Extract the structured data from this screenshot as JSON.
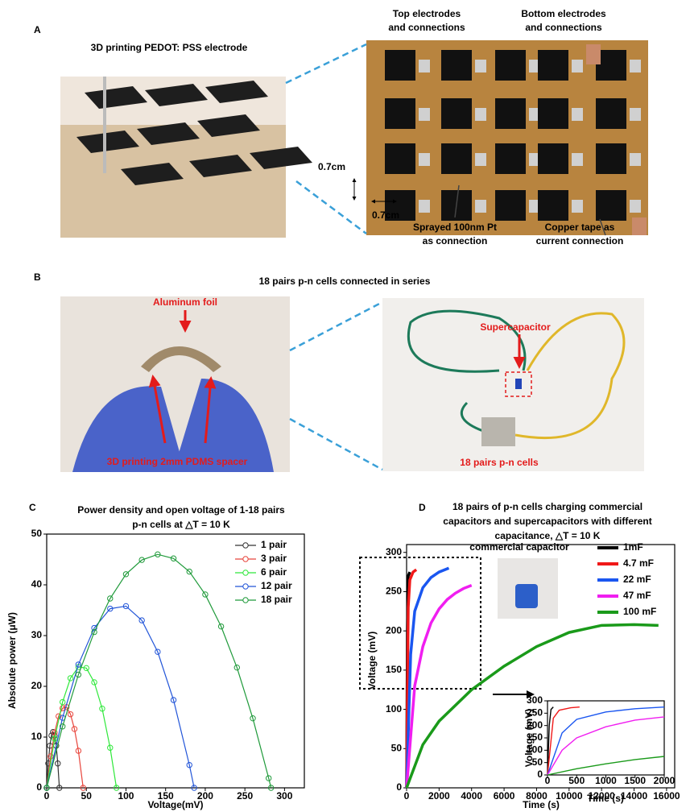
{
  "panels": {
    "A": {
      "label": "A",
      "caption": "3D printing PEDOT: PSS electrode",
      "top_label": [
        "Top electrodes",
        "and connections"
      ],
      "bottom_label": [
        "Bottom electrodes",
        "and connections"
      ],
      "dim_vertical": "0.7cm",
      "dim_horizontal": "0.7cm",
      "pt_label": [
        "Sprayed 100nm Pt",
        "as connection"
      ],
      "copper_label": [
        "Copper tape as",
        "current connection"
      ]
    },
    "B": {
      "label": "B",
      "caption": "18 pairs p-n cells connected in series",
      "foil_label": "Aluminum foil",
      "spacer_label": "3D printing 2mm PDMS spacer",
      "supercap_label": "Supercapacitor",
      "cells_label": "18 pairs p-n cells"
    }
  },
  "chart_data": [
    {
      "type": "line",
      "panel_label": "C",
      "title": [
        "Power density and open voltage of 1-18 pairs",
        "p-n cells at △T = 10 K"
      ],
      "xlabel": "Voltage(mV)",
      "ylabel": "Absolute power (μW)",
      "xlim": [
        0,
        325
      ],
      "ylim": [
        0,
        50
      ],
      "xticks": [
        0,
        50,
        100,
        150,
        200,
        250,
        300
      ],
      "yticks": [
        0,
        10,
        20,
        30,
        40,
        50
      ],
      "markers": "circle",
      "legend": "upper right",
      "series": [
        {
          "name": "1 pair",
          "color": "#333333",
          "x": [
            0,
            2,
            4,
            6,
            8,
            10,
            12,
            14,
            16
          ],
          "values": [
            0,
            4.8,
            8.3,
            10.3,
            11,
            10.3,
            8.3,
            4.8,
            0
          ]
        },
        {
          "name": "3 pair",
          "color": "#e8453c",
          "x": [
            0,
            5,
            10,
            15,
            20,
            25,
            30,
            35,
            40,
            46
          ],
          "values": [
            0,
            6.2,
            10.9,
            14.1,
            15.7,
            15.9,
            14.5,
            11.6,
            7.3,
            0
          ]
        },
        {
          "name": "6 pair",
          "color": "#2ee83a",
          "x": [
            0,
            10,
            20,
            30,
            40,
            50,
            60,
            70,
            80,
            88
          ],
          "values": [
            0,
            9.7,
            16.9,
            21.6,
            23.8,
            23.6,
            20.8,
            15.6,
            7.9,
            0
          ]
        },
        {
          "name": "12 pair",
          "color": "#2255d8",
          "x": [
            0,
            20,
            40,
            60,
            80,
            100,
            120,
            140,
            160,
            180,
            186
          ],
          "values": [
            0,
            13.8,
            24.3,
            31.5,
            35.3,
            35.8,
            33,
            26.8,
            17.3,
            4.5,
            0
          ]
        },
        {
          "name": "18 pair",
          "color": "#1f9a3a",
          "x": [
            0,
            20,
            40,
            60,
            80,
            100,
            120,
            140,
            160,
            180,
            200,
            220,
            240,
            260,
            280,
            283
          ],
          "values": [
            0,
            12.1,
            22.3,
            30.7,
            37.3,
            42.1,
            44.9,
            46,
            45.2,
            42.6,
            38.1,
            31.8,
            23.7,
            13.7,
            1.9,
            0
          ]
        }
      ]
    },
    {
      "type": "line",
      "panel_label": "D",
      "title": [
        "18 pairs of p-n cells charging commercial",
        "capacitors and supercapacitors with different",
        "capacitance, △T = 10 K"
      ],
      "annotation": "commercial  capacitor",
      "xlabel": "Time (s)",
      "ylabel": "Voltage (mV)",
      "xlim": [
        0,
        16500
      ],
      "ylim": [
        0,
        310
      ],
      "xticks": [
        0,
        2000,
        4000,
        6000,
        8000,
        10000,
        12000,
        14000,
        16000
      ],
      "yticks": [
        0,
        50,
        100,
        150,
        200,
        250,
        300
      ],
      "legend": "upper right",
      "series": [
        {
          "name": "1mF",
          "color": "#000000",
          "x": [
            0,
            50,
            100,
            200
          ],
          "values": [
            0,
            200,
            270,
            275
          ]
        },
        {
          "name": "4.7 mF",
          "color": "#f01818",
          "x": [
            0,
            100,
            200,
            400,
            600
          ],
          "values": [
            0,
            230,
            265,
            275,
            278
          ]
        },
        {
          "name": "22 mF",
          "color": "#1a56f0",
          "x": [
            0,
            250,
            500,
            1000,
            1500,
            2000,
            2600
          ],
          "values": [
            0,
            170,
            225,
            255,
            268,
            275,
            280
          ]
        },
        {
          "name": "47 mF",
          "color": "#f01ef0",
          "x": [
            0,
            500,
            1000,
            1500,
            2000,
            2500,
            3000,
            3500,
            4000
          ],
          "values": [
            0,
            130,
            180,
            210,
            228,
            240,
            248,
            254,
            258
          ]
        },
        {
          "name": "100 mF",
          "color": "#1a9a1a",
          "x": [
            0,
            1000,
            2000,
            4000,
            6000,
            8000,
            10000,
            12000,
            14000,
            15500
          ],
          "values": [
            0,
            55,
            85,
            125,
            155,
            180,
            198,
            207,
            208,
            207
          ]
        }
      ]
    },
    {
      "type": "line",
      "xlabel": "Time (s)",
      "ylabel": "Voltage (mV)",
      "xlim": [
        0,
        2000
      ],
      "ylim": [
        0,
        300
      ],
      "xticks": [
        0,
        500,
        1000,
        1500,
        2000
      ],
      "yticks": [
        0,
        50,
        100,
        150,
        200,
        250,
        300
      ],
      "series": [
        {
          "color": "#000000",
          "x": [
            0,
            30,
            60,
            100
          ],
          "values": [
            0,
            200,
            265,
            275
          ]
        },
        {
          "color": "#f01818",
          "x": [
            0,
            100,
            200,
            400,
            550
          ],
          "values": [
            0,
            230,
            262,
            272,
            275
          ]
        },
        {
          "color": "#1a56f0",
          "x": [
            0,
            250,
            500,
            1000,
            1500,
            2000
          ],
          "values": [
            0,
            170,
            225,
            255,
            268,
            275
          ]
        },
        {
          "color": "#f01ef0",
          "x": [
            0,
            250,
            500,
            1000,
            1500,
            2000
          ],
          "values": [
            0,
            100,
            150,
            195,
            222,
            235
          ]
        },
        {
          "color": "#1a9a1a",
          "x": [
            0,
            500,
            1000,
            1500,
            2000
          ],
          "values": [
            0,
            25,
            45,
            62,
            75
          ]
        }
      ]
    }
  ]
}
